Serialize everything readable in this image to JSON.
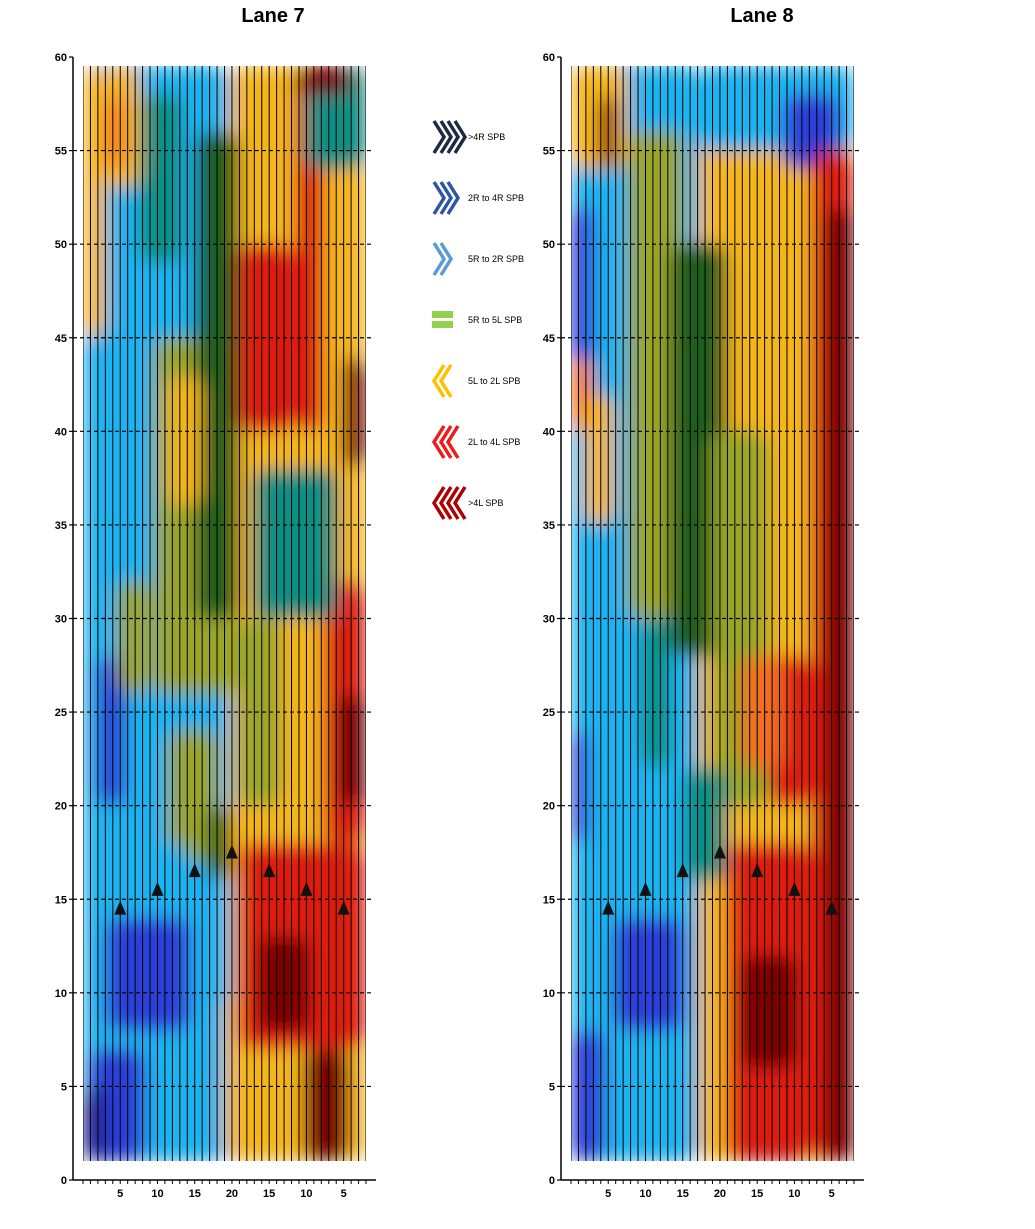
{
  "chart_data": [
    {
      "type": "heatmap",
      "title": "Lane 7",
      "ylim": [
        0,
        60
      ],
      "y_ticks": [
        0,
        5,
        10,
        15,
        20,
        25,
        30,
        35,
        40,
        45,
        50,
        55,
        60
      ],
      "x_ticks": [
        "5",
        "10",
        "15",
        "20",
        "15",
        "10",
        "5"
      ],
      "x_tick_positions": [
        5,
        10,
        15,
        20,
        25,
        30,
        35
      ],
      "gridlines": "dashed-horizontal",
      "markers": [
        {
          "x": 5,
          "y": 14.5
        },
        {
          "x": 10,
          "y": 15.5
        },
        {
          "x": 15,
          "y": 16.5
        },
        {
          "x": 20,
          "y": 17.5
        },
        {
          "x": 25,
          "y": 16.5
        },
        {
          "x": 30,
          "y": 15.5
        },
        {
          "x": 35,
          "y": 14.5
        }
      ]
    },
    {
      "type": "heatmap",
      "title": "Lane 8",
      "ylim": [
        0,
        60
      ],
      "y_ticks": [
        0,
        5,
        10,
        15,
        20,
        25,
        30,
        35,
        40,
        45,
        50,
        55,
        60
      ],
      "x_ticks": [
        "5",
        "10",
        "15",
        "20",
        "15",
        "10",
        "5"
      ],
      "x_tick_positions": [
        5,
        10,
        15,
        20,
        25,
        30,
        35
      ],
      "gridlines": "dashed-horizontal",
      "markers": [
        {
          "x": 5,
          "y": 14.5
        },
        {
          "x": 10,
          "y": 15.5
        },
        {
          "x": 15,
          "y": 16.5
        },
        {
          "x": 20,
          "y": 17.5
        },
        {
          "x": 25,
          "y": 16.5
        },
        {
          "x": 30,
          "y": 15.5
        },
        {
          "x": 35,
          "y": 14.5
        }
      ]
    }
  ],
  "legend": [
    {
      "label": ">4R SPB",
      "color": "#1f2a44",
      "shape": "chevron-right",
      "count": 4
    },
    {
      "label": "2R to 4R SPB",
      "color": "#2f55a4",
      "shape": "chevron-right",
      "count": 3
    },
    {
      "label": "5R to 2R SPB",
      "color": "#5b9bd5",
      "shape": "chevron-right",
      "count": 2
    },
    {
      "label": "5R to 5L SPB",
      "color": "#92d050",
      "shape": "equals",
      "count": 1
    },
    {
      "label": "5L to 2L SPB",
      "color": "#ffc000",
      "shape": "chevron-left",
      "count": 2
    },
    {
      "label": "2L to 4L SPB",
      "color": "#ee1c1c",
      "shape": "chevron-left",
      "count": 3
    },
    {
      "label": ">4L SPB",
      "color": "#b00000",
      "shape": "chevron-left",
      "count": 4
    }
  ],
  "palette": {
    "dark_blue": "#1a1a90",
    "blue": "#2a3fd8",
    "light_blue": "#1ab3f0",
    "teal": "#0f8f84",
    "green": "#1f5f1a",
    "olive": "#9aa52a",
    "yellow": "#f5b61f",
    "orange": "#f07020",
    "red": "#dd1a10",
    "dark_red": "#7a0606"
  }
}
